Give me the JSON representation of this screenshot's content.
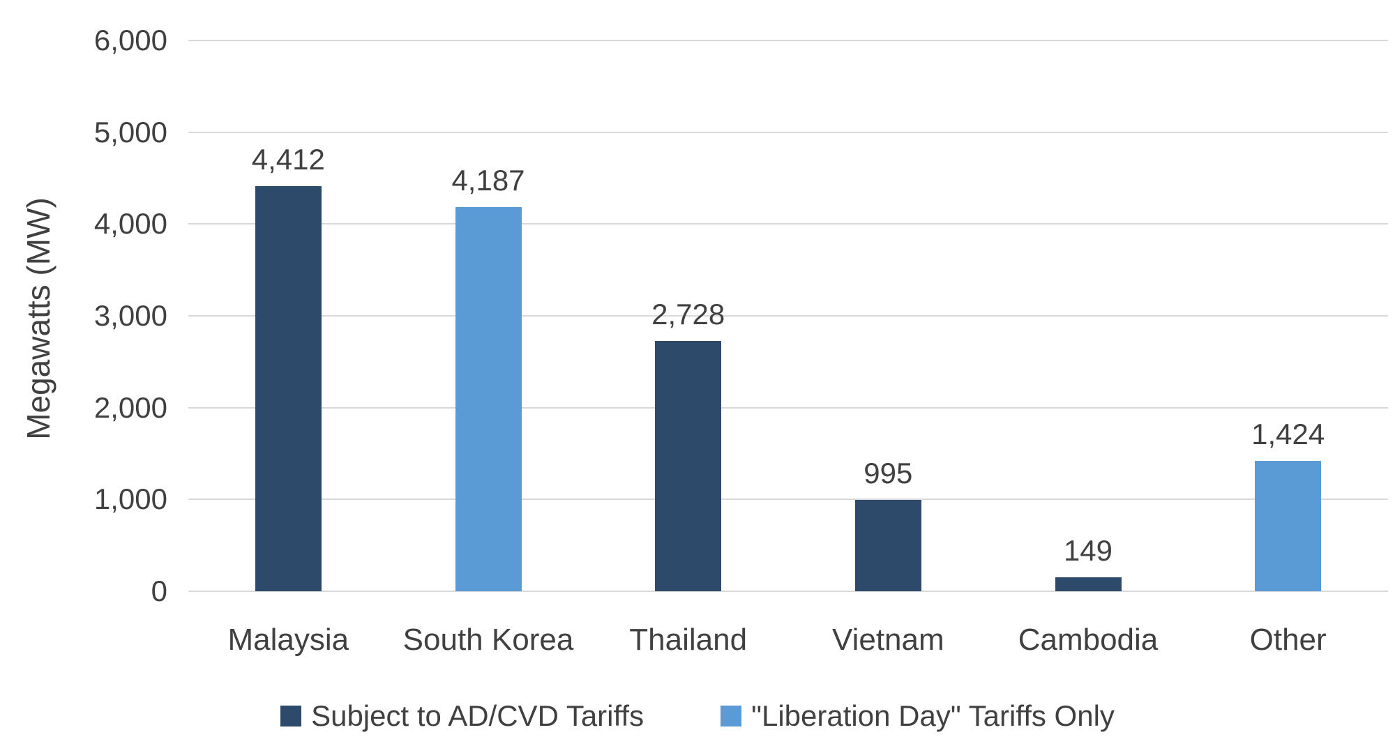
{
  "chart_data": {
    "type": "bar",
    "title": "",
    "xlabel": "",
    "ylabel": "Megawatts (MW)",
    "categories": [
      "Malaysia",
      "South Korea",
      "Thailand",
      "Vietnam",
      "Cambodia",
      "Other"
    ],
    "values": [
      4412,
      4187,
      2728,
      995,
      149,
      1424
    ],
    "value_labels": [
      "4,412",
      "4,187",
      "2,728",
      "995",
      "149",
      "1,424"
    ],
    "bar_series": [
      "Subject to AD/CVD Tariffs",
      "\"Liberation Day\" Tariffs Only",
      "Subject to AD/CVD Tariffs",
      "Subject to AD/CVD Tariffs",
      "Subject to AD/CVD Tariffs",
      "\"Liberation Day\" Tariffs Only"
    ],
    "bar_colors": [
      "#2E4A6B",
      "#5B9BD5",
      "#2E4A6B",
      "#2E4A6B",
      "#2E4A6B",
      "#5B9BD5"
    ],
    "ylim": [
      0,
      6000
    ],
    "ytick_step": 1000,
    "ytick_labels": [
      "0",
      "1,000",
      "2,000",
      "3,000",
      "4,000",
      "5,000",
      "6,000"
    ],
    "grid": true,
    "legend": {
      "position": "bottom",
      "entries": [
        {
          "label": "Subject to AD/CVD Tariffs",
          "color": "#2E4A6B"
        },
        {
          "label": "\"Liberation Day\" Tariffs Only",
          "color": "#5B9BD5"
        }
      ]
    },
    "colors": {
      "dark_series": "#2E4A6B",
      "light_series": "#5B9BD5",
      "gridline": "#D9D9D9",
      "text": "#404040",
      "background": "#FFFFFF"
    }
  }
}
